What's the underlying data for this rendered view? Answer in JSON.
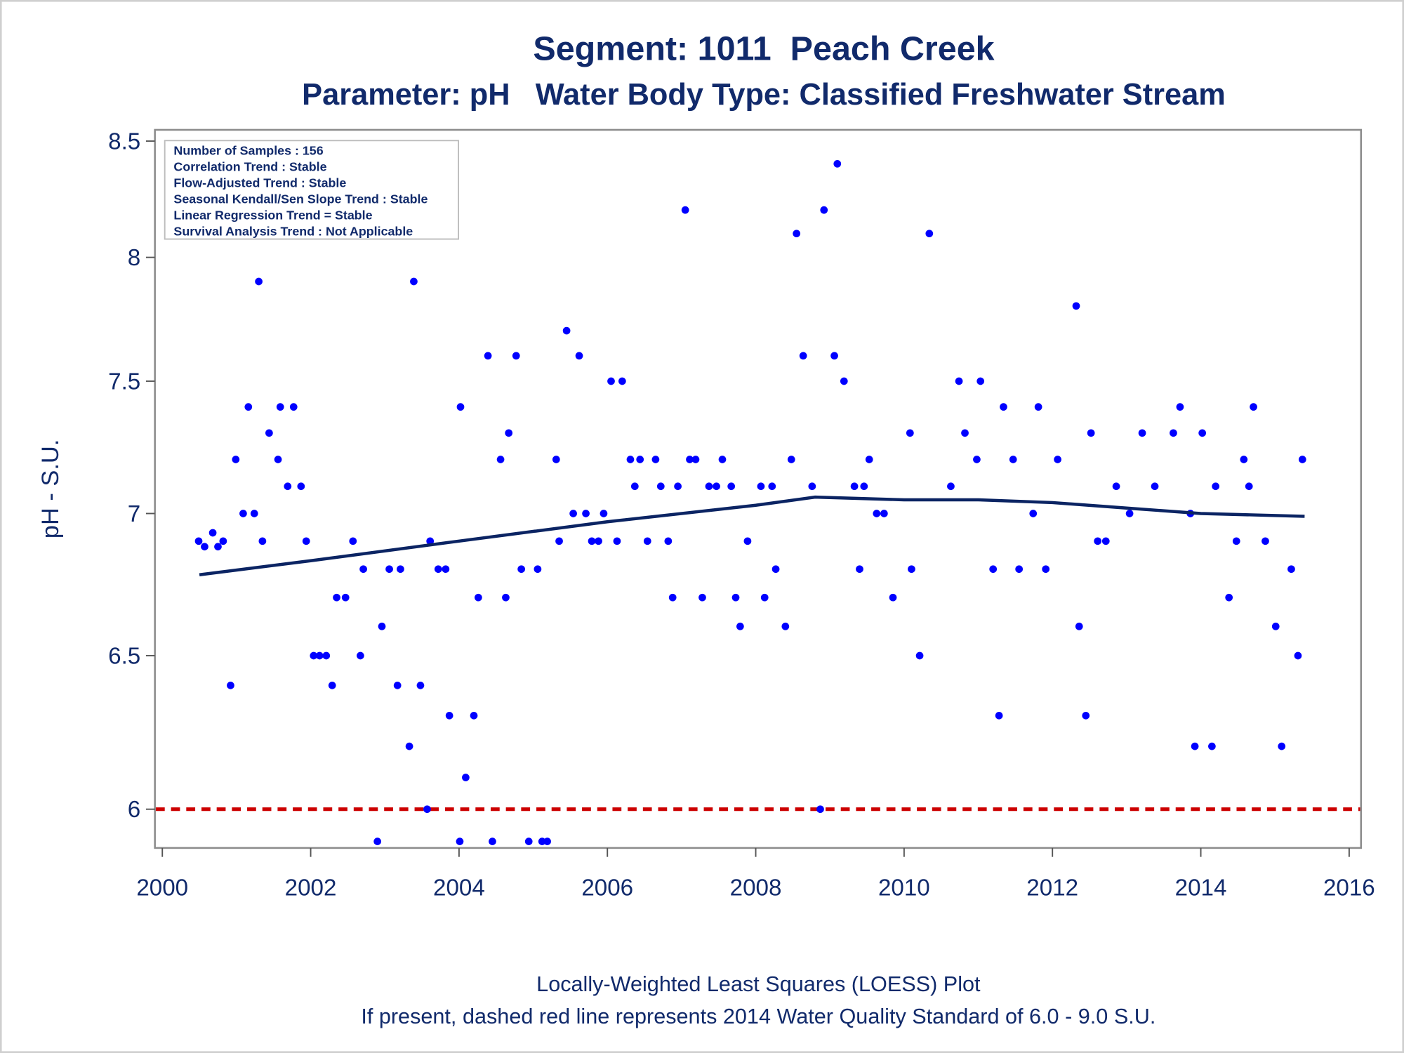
{
  "chart_data": {
    "type": "scatter",
    "title": "Segment: 1011  Peach Creek",
    "subtitle": "Parameter: pH   Water Body Type: Classified Freshwater Stream",
    "ylabel": "pH - S.U.",
    "annotations": [
      "Number of Samples : 156",
      "Correlation Trend : Stable",
      "Flow-Adjusted Trend : Stable",
      "Seasonal Kendall/Sen Slope Trend : Stable",
      "Linear Regression Trend = Stable",
      "Survival Analysis Trend : Not Applicable"
    ],
    "footnotes": [
      "Locally-Weighted Least Squares (LOESS) Plot",
      "If present, dashed red line represents 2014 Water Quality Standard of 6.0 - 9.0 S.U."
    ],
    "xlim": [
      1999.9,
      2016.16
    ],
    "xticks": [
      2000,
      2002,
      2004,
      2006,
      2008,
      2010,
      2012,
      2014,
      2016
    ],
    "ylim": [
      5.88,
      8.55
    ],
    "yticks": [
      6,
      6.5,
      7,
      7.5,
      8,
      8.5
    ],
    "log_y": true,
    "reference_line": {
      "value": 6,
      "color": "#cc0000"
    },
    "series": [
      {
        "type": "scatter",
        "color": "#0000ff",
        "x": [
          2000.49,
          2000.57,
          2000.68,
          2000.75,
          2000.82,
          2000.92,
          2000.99,
          2001.09,
          2001.16,
          2001.24,
          2001.3,
          2001.35,
          2001.44,
          2001.56,
          2001.59,
          2001.69,
          2001.77,
          2001.87,
          2001.94,
          2002.04,
          2002.12,
          2002.21,
          2002.29,
          2002.35,
          2002.47,
          2002.57,
          2002.67,
          2002.71,
          2002.9,
          2002.96,
          2003.06,
          2003.17,
          2003.21,
          2003.33,
          2003.39,
          2003.48,
          2003.57,
          2003.61,
          2003.72,
          2003.82,
          2003.87,
          2004.01,
          2004.02,
          2004.09,
          2004.2,
          2004.26,
          2004.39,
          2004.45,
          2004.56,
          2004.63,
          2004.67,
          2004.77,
          2004.84,
          2004.94,
          2005.06,
          2005.12,
          2005.19,
          2005.31,
          2005.35,
          2005.45,
          2005.54,
          2005.62,
          2005.71,
          2005.79,
          2005.88,
          2005.95,
          2006.05,
          2006.13,
          2006.2,
          2006.31,
          2006.37,
          2006.44,
          2006.54,
          2006.65,
          2006.72,
          2006.82,
          2006.88,
          2006.95,
          2007.05,
          2007.11,
          2007.19,
          2007.28,
          2007.37,
          2007.47,
          2007.55,
          2007.67,
          2007.73,
          2007.79,
          2007.89,
          2008.07,
          2008.12,
          2008.22,
          2008.27,
          2008.4,
          2008.48,
          2008.55,
          2008.64,
          2008.76,
          2008.87,
          2008.92,
          2009.06,
          2009.1,
          2009.19,
          2009.33,
          2009.4,
          2009.46,
          2009.53,
          2009.63,
          2009.73,
          2009.85,
          2010.08,
          2010.1,
          2010.21,
          2010.34,
          2010.63,
          2010.74,
          2010.82,
          2010.98,
          2011.03,
          2011.2,
          2011.28,
          2011.34,
          2011.47,
          2011.55,
          2011.74,
          2011.81,
          2011.91,
          2012.07,
          2012.32,
          2012.36,
          2012.45,
          2012.52,
          2012.61,
          2012.72,
          2012.86,
          2013.04,
          2013.21,
          2013.38,
          2013.63,
          2013.72,
          2013.86,
          2013.92,
          2014.02,
          2014.15,
          2014.2,
          2014.38,
          2014.48,
          2014.58,
          2014.65,
          2014.71,
          2014.87,
          2015.01,
          2015.09,
          2015.22,
          2015.31,
          2015.37
        ],
        "values": [
          6.9,
          6.88,
          6.93,
          6.88,
          6.9,
          6.4,
          7.2,
          7.0,
          7.4,
          7.0,
          7.9,
          6.9,
          7.3,
          7.2,
          7.4,
          7.1,
          7.4,
          7.1,
          6.9,
          6.5,
          6.5,
          6.5,
          6.4,
          6.7,
          6.7,
          6.9,
          6.5,
          6.8,
          5.9,
          6.6,
          6.8,
          6.4,
          6.8,
          6.2,
          7.9,
          6.4,
          6.0,
          6.9,
          6.8,
          6.8,
          6.3,
          5.9,
          7.4,
          6.1,
          6.3,
          6.7,
          7.6,
          5.9,
          7.2,
          6.7,
          7.3,
          7.6,
          6.8,
          5.9,
          6.8,
          5.9,
          5.9,
          7.2,
          6.9,
          7.7,
          7.0,
          7.6,
          7.0,
          6.9,
          6.9,
          7.0,
          7.5,
          6.9,
          7.5,
          7.2,
          7.1,
          7.2,
          6.9,
          7.2,
          7.1,
          6.9,
          6.7,
          7.1,
          8.2,
          7.2,
          7.2,
          6.7,
          7.1,
          7.1,
          7.2,
          7.1,
          6.7,
          6.6,
          6.9,
          7.1,
          6.7,
          7.1,
          6.8,
          6.6,
          7.2,
          8.1,
          7.6,
          7.1,
          6.0,
          8.2,
          7.6,
          8.4,
          7.5,
          7.1,
          6.8,
          7.1,
          7.2,
          7.0,
          7.0,
          6.7,
          7.3,
          6.8,
          6.5,
          8.1,
          7.1,
          7.5,
          7.3,
          7.2,
          7.5,
          6.8,
          6.3,
          7.4,
          7.2,
          6.8,
          7.0,
          7.4,
          6.8,
          7.2,
          7.8,
          6.6,
          6.3,
          7.3,
          6.9,
          6.9,
          7.1,
          7.0,
          7.3,
          7.1,
          7.3,
          7.4,
          7.0,
          6.2,
          7.3,
          6.2,
          7.1,
          6.7,
          6.9,
          7.2,
          7.1,
          7.4,
          6.9,
          6.6,
          6.2,
          6.8,
          6.5,
          7.2
        ]
      },
      {
        "type": "line",
        "color": "#0b2463",
        "x": [
          2000.5,
          2002,
          2004,
          2006,
          2008,
          2008.8,
          2010,
          2011,
          2012,
          2013,
          2014,
          2015.4
        ],
        "values": [
          6.78,
          6.83,
          6.9,
          6.97,
          7.03,
          7.06,
          7.05,
          7.05,
          7.04,
          7.02,
          7.0,
          6.99
        ]
      }
    ]
  }
}
